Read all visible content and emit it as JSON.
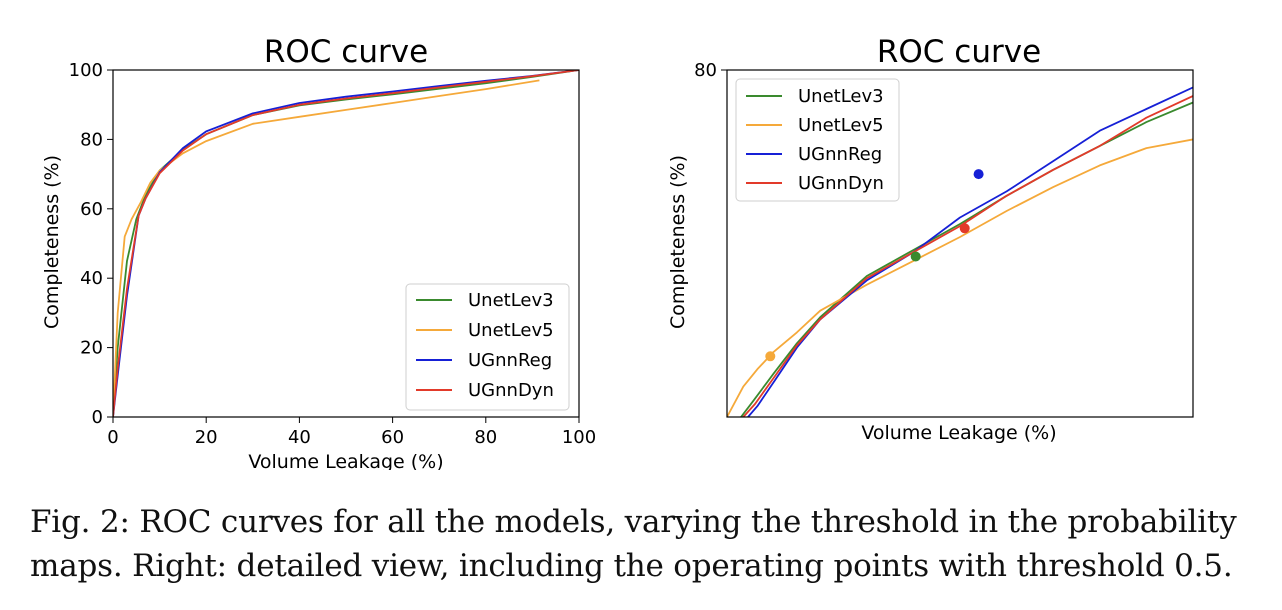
{
  "chart_data": [
    {
      "type": "line",
      "title": "ROC curve",
      "xlabel": "Volume Leakage (%)",
      "ylabel": "Completeness (%)",
      "xlim": [
        0,
        100
      ],
      "ylim": [
        0,
        100
      ],
      "xticks": [
        0,
        20,
        40,
        60,
        80,
        100
      ],
      "yticks": [
        0,
        20,
        40,
        60,
        80,
        100
      ],
      "grid": false,
      "legend_position": "lower-right",
      "series": [
        {
          "name": "UnetLev3",
          "color": "#3a8a2e",
          "x": [
            0,
            1,
            3,
            5,
            7,
            10,
            15,
            20,
            30,
            40,
            50,
            60,
            70,
            80,
            90,
            100
          ],
          "y": [
            0,
            20,
            45,
            57,
            64,
            71,
            77,
            81.5,
            87,
            89.8,
            91.5,
            93,
            94.6,
            96.2,
            98,
            100
          ]
        },
        {
          "name": "UnetLev5",
          "color": "#f5a93a",
          "x": [
            0,
            1,
            2.5,
            4,
            6,
            8,
            10,
            15,
            20,
            30,
            40,
            50,
            60,
            70,
            80,
            91.5
          ],
          "y": [
            0,
            30,
            52,
            57,
            62,
            67.5,
            71,
            76,
            79.5,
            84.5,
            86.5,
            88.5,
            90.5,
            92.5,
            94.5,
            97
          ]
        },
        {
          "name": "UGnnReg",
          "color": "#1620d6",
          "x": [
            0,
            1,
            3,
            5.5,
            7,
            10,
            15,
            20,
            30,
            40,
            50,
            60,
            70,
            80,
            90,
            100
          ],
          "y": [
            0,
            12,
            35,
            58,
            63,
            70.5,
            77.5,
            82.3,
            87.5,
            90.5,
            92.3,
            93.8,
            95.4,
            96.9,
            98.3,
            100
          ]
        },
        {
          "name": "UGnnDyn",
          "color": "#e23a2a",
          "x": [
            0,
            1,
            3,
            5.5,
            7,
            10,
            15,
            20,
            30,
            40,
            50,
            60,
            70,
            80,
            90,
            100
          ],
          "y": [
            0,
            14,
            37,
            58,
            63,
            70.2,
            76.8,
            81.5,
            87,
            90,
            91.8,
            93.3,
            95,
            96.6,
            98.2,
            100
          ]
        }
      ]
    },
    {
      "type": "line",
      "title": "ROC curve",
      "xlabel": "Volume Leakage (%)",
      "ylabel": "Completeness (%)",
      "xlim": [
        0,
        100
      ],
      "ylim": [
        0,
        80
      ],
      "yticks": [
        80
      ],
      "grid": false,
      "legend_position": "upper-left",
      "series": [
        {
          "name": "UnetLev3",
          "color": "#3a8a2e",
          "x": [
            3,
            5.5,
            10,
            15,
            20,
            30,
            40,
            50,
            60,
            70,
            80,
            90,
            100
          ],
          "y": [
            0,
            3.5,
            10,
            17,
            23,
            32.5,
            38.5,
            44.5,
            51,
            57,
            62.5,
            68,
            72.5
          ],
          "operating_point": [
            40.5,
            37
          ]
        },
        {
          "name": "UnetLev5",
          "color": "#f5a93a",
          "x": [
            0,
            3.5,
            6.5,
            10,
            15,
            20,
            30,
            40,
            50,
            60,
            70,
            80,
            90,
            100
          ],
          "y": [
            0,
            7,
            11,
            15,
            19.5,
            24.5,
            30.5,
            36,
            41.5,
            47.5,
            53,
            58,
            62,
            64
          ],
          "operating_point": [
            9.3,
            14
          ]
        },
        {
          "name": "UGnnReg",
          "color": "#1620d6",
          "x": [
            4.5,
            6.5,
            10,
            15,
            20,
            30,
            40,
            50,
            60,
            70,
            80,
            90,
            100
          ],
          "y": [
            0,
            2.5,
            8,
            16,
            22.5,
            31.5,
            38,
            46,
            52,
            59,
            66,
            71,
            76
          ],
          "operating_point": [
            54,
            56
          ]
        },
        {
          "name": "UGnnDyn",
          "color": "#e23a2a",
          "x": [
            3.5,
            6,
            10,
            15,
            20,
            30,
            40,
            50,
            60,
            70,
            80,
            90,
            100
          ],
          "y": [
            0,
            3,
            9,
            16.5,
            22.5,
            32,
            38,
            44,
            51,
            57,
            62.5,
            69,
            74
          ],
          "operating_point": [
            51,
            43.5
          ]
        }
      ]
    }
  ],
  "caption": "Fig. 2: ROC curves for all the models, varying the threshold in the probability maps. Right: detailed view, including the operating points with threshold 0.5."
}
